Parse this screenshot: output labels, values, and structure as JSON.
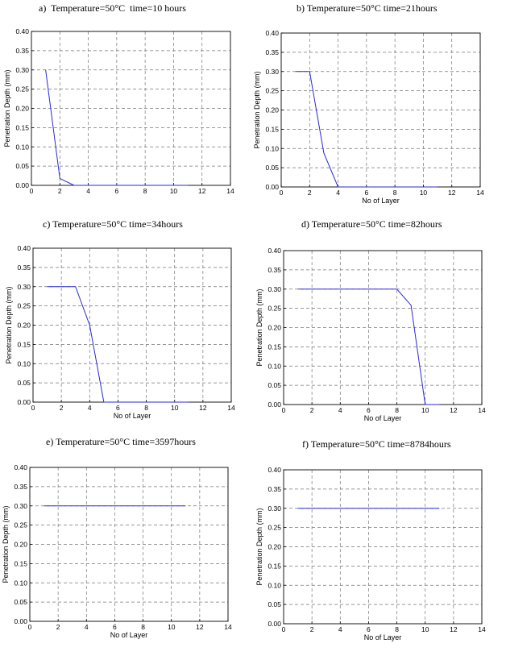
{
  "chart_data": [
    {
      "type": "line",
      "title": "a)  Temperature=50°C  time=10 hours",
      "xlabel": "",
      "ylabel": "Penetration Depth (mm)",
      "xlim": [
        0,
        14
      ],
      "ylim": [
        0,
        0.4
      ],
      "xticks": [
        "0",
        "2",
        "4",
        "6",
        "8",
        "10",
        "12",
        "14"
      ],
      "yticks": [
        "0.00",
        "0.05",
        "0.10",
        "0.15",
        "0.20",
        "0.25",
        "0.30",
        "0.35",
        "0.40"
      ],
      "grid": true,
      "series": [
        {
          "x": [
            1,
            2,
            3,
            4,
            5,
            6,
            7,
            8,
            9,
            10,
            11
          ],
          "y": [
            0.3,
            0.018,
            0.0,
            0.0,
            0.0,
            0.0,
            0.0,
            0.0,
            0.0,
            0.0,
            0.0
          ],
          "color": "#2a2ad6"
        }
      ]
    },
    {
      "type": "line",
      "title": "b) Temperature=50°C time=21hours",
      "xlabel": "No of Layer",
      "ylabel": "Penetration Depth (mm)",
      "xlim": [
        0,
        14
      ],
      "ylim": [
        0,
        0.4
      ],
      "xticks": [
        "0",
        "2",
        "4",
        "6",
        "8",
        "10",
        "12",
        "14"
      ],
      "yticks": [
        "0.00",
        "0.05",
        "0.10",
        "0.15",
        "0.20",
        "0.25",
        "0.30",
        "0.35",
        "0.40"
      ],
      "grid": true,
      "series": [
        {
          "x": [
            1,
            2,
            3,
            4,
            5,
            6,
            7,
            8,
            9,
            10,
            11
          ],
          "y": [
            0.3,
            0.3,
            0.088,
            0.0,
            0.0,
            0.0,
            0.0,
            0.0,
            0.0,
            0.0,
            0.0
          ],
          "color": "#2a2ad6"
        }
      ]
    },
    {
      "type": "line",
      "title": "c) Temperature=50°C time=34hours",
      "xlabel": "No of Layer",
      "ylabel": "Penetration Depth (mm)",
      "xlim": [
        0,
        14
      ],
      "ylim": [
        0,
        0.4
      ],
      "xticks": [
        "0",
        "2",
        "4",
        "6",
        "8",
        "10",
        "12",
        "14"
      ],
      "yticks": [
        "0.00",
        "0.05",
        "0.10",
        "0.15",
        "0.20",
        "0.25",
        "0.30",
        "0.35",
        "0.40"
      ],
      "grid": true,
      "series": [
        {
          "x": [
            1,
            2,
            3,
            4,
            5,
            6,
            7,
            8,
            9,
            10,
            11
          ],
          "y": [
            0.3,
            0.3,
            0.3,
            0.2,
            0.0,
            0.0,
            0.0,
            0.0,
            0.0,
            0.0,
            0.0
          ],
          "color": "#2a2ad6"
        }
      ]
    },
    {
      "type": "line",
      "title": "d) Temperature=50°C time=82hours",
      "xlabel": "No of Layer",
      "ylabel": "Penetration Depth (mm)",
      "xlim": [
        0,
        14
      ],
      "ylim": [
        0,
        0.4
      ],
      "xticks": [
        "0",
        "2",
        "4",
        "6",
        "8",
        "10",
        "12",
        "14"
      ],
      "yticks": [
        "0.00",
        "0.05",
        "0.10",
        "0.15",
        "0.20",
        "0.25",
        "0.30",
        "0.35",
        "0.40"
      ],
      "grid": true,
      "series": [
        {
          "x": [
            1,
            2,
            3,
            4,
            5,
            6,
            7,
            8,
            9,
            10,
            11
          ],
          "y": [
            0.3,
            0.3,
            0.3,
            0.3,
            0.3,
            0.3,
            0.3,
            0.3,
            0.258,
            0.0,
            0.0
          ],
          "color": "#2a2ad6"
        }
      ]
    },
    {
      "type": "line",
      "title": "e) Temperature=50°C time=3597hours",
      "xlabel": "No of Layer",
      "ylabel": "Penetration Depth (mm)",
      "xlim": [
        0,
        14
      ],
      "ylim": [
        0,
        0.4
      ],
      "xticks": [
        "0",
        "2",
        "4",
        "6",
        "8",
        "10",
        "12",
        "14"
      ],
      "yticks": [
        "0.00",
        "0.05",
        "0.10",
        "0.15",
        "0.20",
        "0.25",
        "0.30",
        "0.35",
        "0.40"
      ],
      "grid": true,
      "series": [
        {
          "x": [
            1,
            2,
            3,
            4,
            5,
            6,
            7,
            8,
            9,
            10,
            11
          ],
          "y": [
            0.3,
            0.3,
            0.3,
            0.3,
            0.3,
            0.3,
            0.3,
            0.3,
            0.3,
            0.3,
            0.3
          ],
          "color": "#2a2ad6"
        }
      ]
    },
    {
      "type": "line",
      "title": "f) Temperature=50°C time=8784hours",
      "xlabel": "No of Layer",
      "ylabel": "Penetration Depth (mm)",
      "xlim": [
        0,
        14
      ],
      "ylim": [
        0,
        0.4
      ],
      "xticks": [
        "0",
        "2",
        "4",
        "6",
        "8",
        "10",
        "12",
        "14"
      ],
      "yticks": [
        "0.00",
        "0.05",
        "0.10",
        "0.15",
        "0.20",
        "0.25",
        "0.30",
        "0.35",
        "0.40"
      ],
      "grid": true,
      "series": [
        {
          "x": [
            1,
            2,
            3,
            4,
            5,
            6,
            7,
            8,
            9,
            10,
            11
          ],
          "y": [
            0.3,
            0.3,
            0.3,
            0.3,
            0.3,
            0.3,
            0.3,
            0.3,
            0.3,
            0.3,
            0.3
          ],
          "color": "#2a2ad6"
        }
      ]
    }
  ]
}
